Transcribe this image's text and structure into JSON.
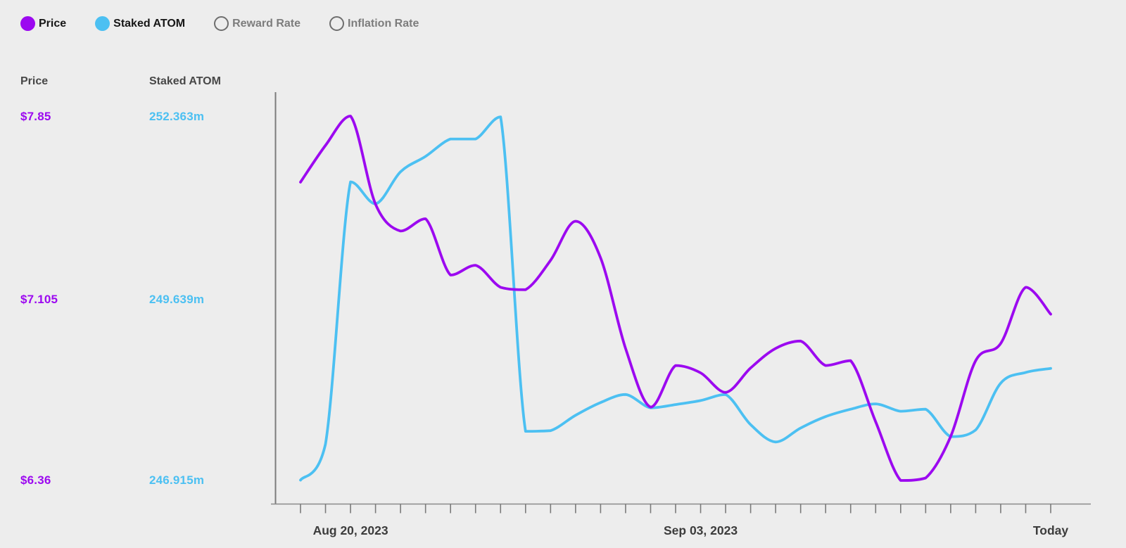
{
  "ui": {
    "background_color": "#EDEDED",
    "legend": {
      "items": [
        {
          "label": "Price",
          "selected": true,
          "color": "#9C09F0"
        },
        {
          "label": "Staked ATOM",
          "selected": true,
          "color": "#4CC0F2"
        },
        {
          "label": "Reward Rate",
          "selected": false,
          "color": "#6e6e6e"
        },
        {
          "label": "Inflation Rate",
          "selected": false,
          "color": "#6e6e6e"
        }
      ]
    },
    "info_panel": {
      "columns": [
        {
          "header": "Price",
          "color": "#9C09F0",
          "values": [
            "$7.85",
            "$7.105",
            "$6.36"
          ]
        },
        {
          "header": "Staked ATOM",
          "color": "#4CC0F2",
          "values": [
            "252.363m",
            "249.639m",
            "246.915m"
          ]
        }
      ]
    },
    "x_axis_label_1": "Aug 20, 2023",
    "x_axis_label_2": "Sep 03, 2023",
    "x_axis_label_3": "Today"
  },
  "chart_data": {
    "type": "line",
    "title": "",
    "x_description": "daily samples, 31 consecutive days ending at Today",
    "x": [
      0,
      1,
      2,
      3,
      4,
      5,
      6,
      7,
      8,
      9,
      10,
      11,
      12,
      13,
      14,
      15,
      16,
      17,
      18,
      19,
      20,
      21,
      22,
      23,
      24,
      25,
      26,
      27,
      28,
      29,
      30
    ],
    "x_axis_labels": [
      {
        "index": 2,
        "label": "Aug 20, 2023"
      },
      {
        "index": 16,
        "label": "Sep 03, 2023"
      },
      {
        "index": 30,
        "label": "Today"
      }
    ],
    "grid": false,
    "legend_position": "top-left",
    "series": [
      {
        "name": "Price",
        "color": "#9C09F0",
        "unit": "USD",
        "axis_tick_labels": [
          "$7.85",
          "$7.105",
          "$6.36"
        ],
        "tick_values": [
          7.85,
          7.105,
          6.36
        ],
        "values": [
          7.58,
          7.73,
          7.85,
          7.49,
          7.38,
          7.43,
          7.2,
          7.24,
          7.15,
          7.14,
          7.26,
          7.42,
          7.27,
          6.9,
          6.66,
          6.83,
          6.8,
          6.72,
          6.82,
          6.9,
          6.93,
          6.83,
          6.85,
          6.6,
          6.36,
          6.37,
          6.54,
          6.85,
          6.92,
          7.15,
          7.04
        ]
      },
      {
        "name": "Staked ATOM",
        "color": "#4CC0F2",
        "unit": "millions of ATOM",
        "axis_tick_labels": [
          "252.363m",
          "249.639m",
          "246.915m"
        ],
        "tick_values": [
          252.363,
          249.639,
          246.915
        ],
        "values": [
          246.92,
          247.46,
          251.38,
          251.05,
          251.53,
          251.76,
          252.02,
          252.02,
          252.35,
          247.65,
          247.66,
          247.89,
          248.08,
          248.2,
          248.0,
          248.05,
          248.11,
          248.2,
          247.75,
          247.49,
          247.7,
          247.87,
          247.98,
          248.06,
          247.95,
          247.98,
          247.57,
          247.67,
          248.37,
          248.53,
          248.59
        ]
      }
    ],
    "unselected_series": [
      "Reward Rate",
      "Inflation Rate"
    ]
  }
}
